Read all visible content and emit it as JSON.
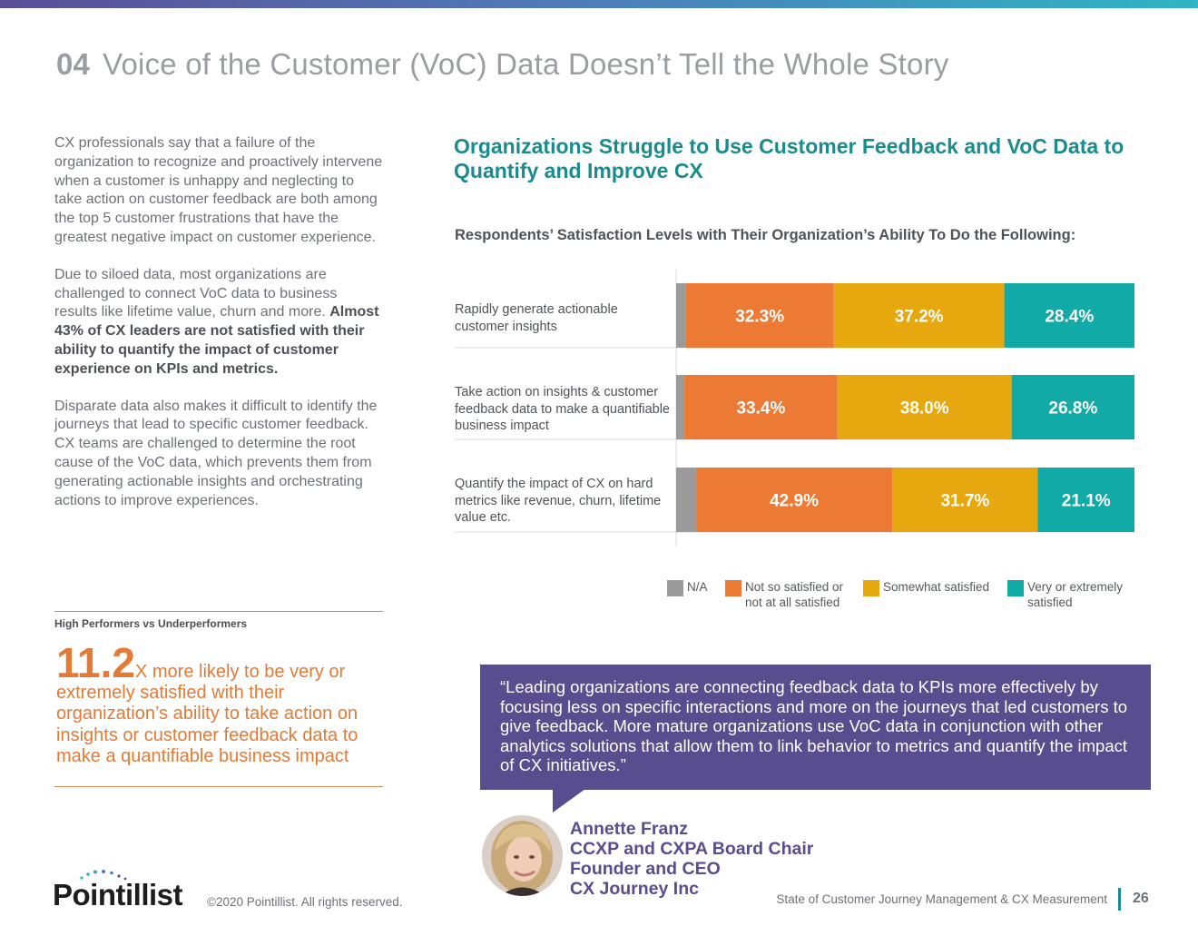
{
  "header": {
    "section_number": "04",
    "title": "Voice of the Customer (VoC) Data Doesn’t Tell the Whole Story"
  },
  "left": {
    "para1": "CX professionals say that a failure of the organization to recognize and proactively intervene when a customer is unhappy and neglecting to take action on customer feedback are both among the top 5 customer frustrations that have the greatest negative impact on customer experience.",
    "para2_plain": "Due to siloed data, most organizations are challenged to connect VoC data to business results like lifetime value, churn and more.",
    "para2_bold": "Almost 43%  of CX leaders are not satisfied with their ability to quantify the impact of customer experience on KPIs and metrics.",
    "para3": "Disparate data also makes it difficult to identify the journeys that lead to specific customer feedback. CX teams are challenged to determine the root cause of the VoC data, which prevents them from generating actionable insights and orchestrating actions to improve experiences.",
    "hp_label": "High Performers vs Underperformers",
    "hp_big": "11.2",
    "hp_text": "X  more likely to be very or extremely satisfied with their organization’s ability to take action on insights or customer feedback data to make a quantifiable business impact"
  },
  "chart_data": {
    "type": "bar",
    "orientation": "horizontal-stacked-100",
    "title": "Organizations Struggle to Use Customer Feedback and VoC Data to Quantify and Improve CX",
    "subtitle": "Respondents’ Satisfaction Levels with Their Organization’s Ability To Do the Following:",
    "categories": [
      "Rapidly generate actionable customer insights",
      "Take action on insights & customer feedback data to make a quantifiable business impact",
      "Quantify the impact of CX on hard metrics like revenue, churn,  lifetime value etc."
    ],
    "series": [
      {
        "name": "N/A",
        "color": "#9b9b9b",
        "values": [
          2.1,
          1.8,
          4.3
        ],
        "labels": [
          "",
          "",
          ""
        ]
      },
      {
        "name": "Not so satisfied or not at all satisfied",
        "color": "#ec7a35",
        "values": [
          32.3,
          33.4,
          42.9
        ],
        "labels": [
          "32.3%",
          "33.4%",
          "42.9%"
        ]
      },
      {
        "name": "Somewhat satisfied",
        "color": "#e6a80e",
        "values": [
          37.2,
          38.0,
          31.7
        ],
        "labels": [
          "37.2%",
          "38.0%",
          "31.7%"
        ]
      },
      {
        "name": "Very or extremely satisfied",
        "color": "#12aaa7",
        "values": [
          28.4,
          26.8,
          21.1
        ],
        "labels": [
          "28.4%",
          "26.8%",
          "21.1%"
        ]
      }
    ],
    "xlim": [
      0,
      100
    ],
    "grid": false,
    "legend": "bottom"
  },
  "quote": {
    "text": "“Leading organizations are connecting feedback data to KPIs more effectively by focusing less on specific interactions and more on the journeys that led customers to give feedback. More mature organizations use VoC data in conjunction with other analytics solutions that allow them to link behavior to metrics and quantify the impact of CX initiatives.”",
    "name": "Annette Franz",
    "role1": "CCXP and CXPA Board Chair",
    "role2": "Founder and CEO",
    "company": "CX Journey Inc"
  },
  "footer": {
    "logo": "Pointillist",
    "copyright": "©2020 Pointillist. All rights reserved.",
    "report_title": "State of Customer Journey Management & CX Measurement",
    "page_number": "26"
  },
  "colors": {
    "teal": "#1a8c8e",
    "orange": "#e37a35",
    "purple": "#574d8f"
  }
}
